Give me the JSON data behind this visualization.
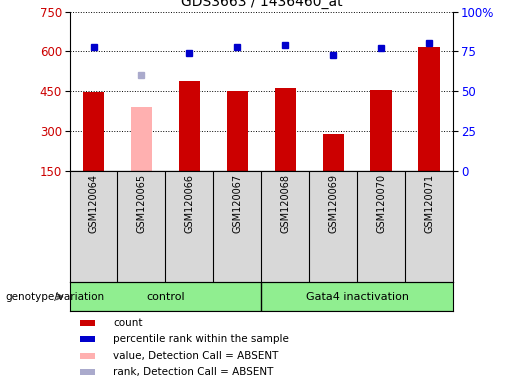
{
  "title": "GDS3663 / 1436460_at",
  "samples": [
    "GSM120064",
    "GSM120065",
    "GSM120066",
    "GSM120067",
    "GSM120068",
    "GSM120069",
    "GSM120070",
    "GSM120071"
  ],
  "count_values": [
    447,
    null,
    490,
    449,
    461,
    290,
    456,
    618
  ],
  "count_absent_values": [
    null,
    390,
    null,
    null,
    null,
    null,
    null,
    null
  ],
  "rank_values": [
    78,
    null,
    74,
    78,
    79,
    73,
    77,
    80
  ],
  "rank_absent_values": [
    null,
    60,
    null,
    null,
    null,
    null,
    null,
    null
  ],
  "groups": [
    {
      "label": "control",
      "start": 0,
      "end": 4,
      "color": "#90ee90"
    },
    {
      "label": "Gata4 inactivation",
      "start": 4,
      "end": 8,
      "color": "#90ee90"
    }
  ],
  "ylim_left": [
    150,
    750
  ],
  "ylim_right": [
    0,
    100
  ],
  "yticks_left": [
    150,
    300,
    450,
    600,
    750
  ],
  "yticks_right": [
    0,
    25,
    50,
    75,
    100
  ],
  "bar_color_red": "#cc0000",
  "bar_color_pink": "#ffb0b0",
  "rank_color_blue": "#0000cc",
  "rank_color_lightblue": "#aaaacc",
  "grid_color": "black",
  "bg_color": "#d8d8d8",
  "legend_items": [
    {
      "label": "count",
      "color": "#cc0000"
    },
    {
      "label": "percentile rank within the sample",
      "color": "#0000cc"
    },
    {
      "label": "value, Detection Call = ABSENT",
      "color": "#ffb0b0"
    },
    {
      "label": "rank, Detection Call = ABSENT",
      "color": "#aaaacc"
    }
  ],
  "fig_width": 5.15,
  "fig_height": 3.84,
  "dpi": 100
}
